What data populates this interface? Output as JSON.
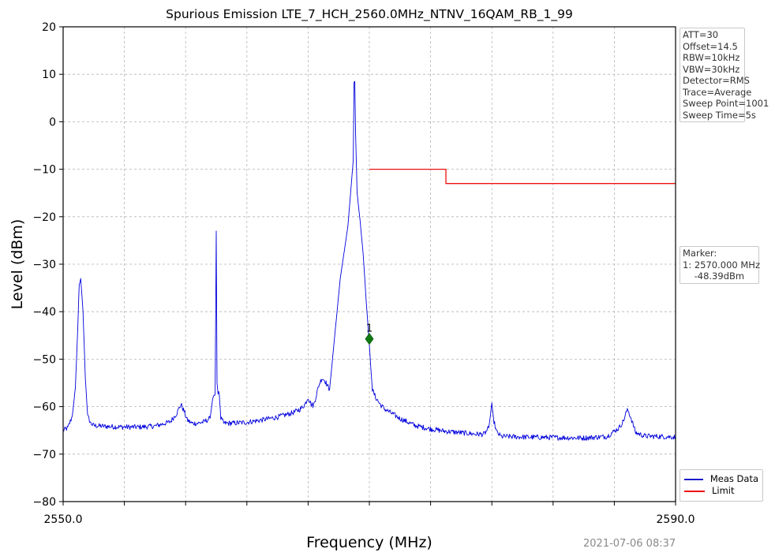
{
  "chart_data": {
    "type": "line",
    "title": "Spurious Emission LTE_7_HCH_2560.0MHz_NTNV_16QAM_RB_1_99",
    "xlabel": "Frequency (MHz)",
    "ylabel": "Level (dBm)",
    "xlim": [
      2550.0,
      2590.0
    ],
    "ylim": [
      -80,
      20
    ],
    "x_ticks": [
      2550,
      2554,
      2558,
      2562,
      2566,
      2570,
      2574,
      2578,
      2582,
      2586,
      2590
    ],
    "x_tick_labels": [
      "2550.0",
      "",
      "",
      "",
      "",
      "",
      "",
      "",
      "",
      "",
      "2590.0"
    ],
    "y_ticks": [
      20,
      10,
      0,
      -10,
      -20,
      -30,
      -40,
      -50,
      -60,
      -70,
      -80
    ],
    "y_tick_labels": [
      "20",
      "10",
      "0",
      "−10",
      "−20",
      "−30",
      "−40",
      "−50",
      "−60",
      "−70",
      "−80"
    ],
    "grid": true,
    "legend_position": "bottom-right (outside)",
    "series": [
      {
        "name": "Meas Data",
        "color": "#0000dd",
        "x": [
          2550.0,
          2550.3,
          2550.6,
          2550.8,
          2550.95,
          2551.05,
          2551.15,
          2551.3,
          2551.45,
          2551.6,
          2551.8,
          2552.0,
          2553.0,
          2554.0,
          2555.0,
          2556.0,
          2557.0,
          2557.4,
          2557.7,
          2557.9,
          2558.1,
          2558.4,
          2558.8,
          2559.2,
          2559.6,
          2559.8,
          2559.93,
          2560.0,
          2560.05,
          2560.12,
          2560.2,
          2560.3,
          2560.5,
          2561.0,
          2562.0,
          2563.0,
          2564.0,
          2565.0,
          2565.5,
          2565.8,
          2566.0,
          2566.2,
          2566.35,
          2566.5,
          2566.7,
          2566.9,
          2567.1,
          2567.4,
          2567.8,
          2568.1,
          2568.6,
          2568.95,
          2569.0,
          2569.05,
          2569.1,
          2569.2,
          2569.4,
          2569.6,
          2569.8,
          2570.0,
          2570.1,
          2570.2,
          2570.4,
          2570.7,
          2571.0,
          2572.0,
          2573.0,
          2574.0,
          2575.0,
          2576.0,
          2577.0,
          2577.5,
          2577.8,
          2577.9,
          2578.0,
          2578.1,
          2578.3,
          2578.6,
          2579.0,
          2580.0,
          2582.0,
          2584.0,
          2585.5,
          2586.3,
          2586.6,
          2586.8,
          2586.9,
          2587.1,
          2587.4,
          2588.0,
          2589.0,
          2590.0
        ],
        "y": [
          -65,
          -64.5,
          -62,
          -56,
          -44,
          -34,
          -33,
          -40,
          -54,
          -62,
          -63.5,
          -64,
          -64.2,
          -64.3,
          -64.3,
          -64.1,
          -63.2,
          -61.5,
          -59.5,
          -61,
          -62.8,
          -63.5,
          -63.5,
          -63.2,
          -62.5,
          -57.5,
          -57.5,
          -23,
          -55,
          -57,
          -57.5,
          -62.5,
          -63.5,
          -63.5,
          -63.3,
          -62.8,
          -62.2,
          -61.3,
          -60.5,
          -59.5,
          -58,
          -59.5,
          -59.8,
          -58,
          -55.5,
          -54,
          -54.5,
          -56.5,
          -43,
          -33,
          -22,
          -8,
          8.8,
          8.5,
          -2,
          -15,
          -21,
          -28,
          -38,
          -47,
          -52,
          -56.5,
          -58,
          -59.5,
          -60.5,
          -62.5,
          -64,
          -64.7,
          -65.2,
          -65.5,
          -65.8,
          -65.8,
          -64.5,
          -62,
          -59.2,
          -62.5,
          -65.3,
          -66.3,
          -66.3,
          -66.4,
          -66.5,
          -66.6,
          -66.3,
          -64.5,
          -63,
          -61,
          -60.8,
          -62.5,
          -65.5,
          -66.2,
          -66.3,
          -66.4
        ]
      },
      {
        "name": "Limit",
        "color": "#ee1111",
        "x": [
          2570.0,
          2575.0,
          2575.0,
          2590.0
        ],
        "y": [
          -10.0,
          -10.0,
          -13.0,
          -13.0
        ]
      }
    ],
    "marker": {
      "label": "1",
      "x": 2570.0,
      "y": -48.39,
      "color": "#0f7a12"
    }
  },
  "settings_box": {
    "lines": [
      "ATT=30",
      "Offset=14.5",
      "RBW=10kHz",
      "VBW=30kHz",
      "Detector=RMS",
      "Trace=Average",
      "Sweep Point=1001",
      "Sweep Time=5s"
    ]
  },
  "marker_box": {
    "lines": [
      "Marker:",
      "1: 2570.000 MHz",
      "    -48.39dBm"
    ]
  },
  "legend": {
    "items": [
      {
        "label": "Meas Data",
        "color": "#1a1acc"
      },
      {
        "label": "Limit",
        "color": "#ee1111"
      }
    ]
  },
  "timestamp": "2021-07-06 08:37"
}
